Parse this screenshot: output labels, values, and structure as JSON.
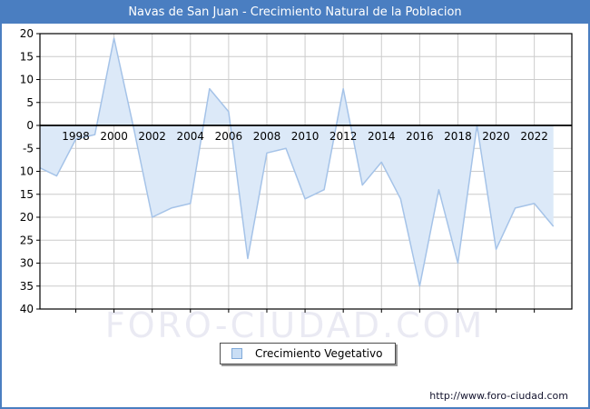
{
  "title": "Navas de San Juan - Crecimiento Natural de la Poblacion",
  "legend": {
    "label": "Crecimiento Vegetativo"
  },
  "watermark": "FORO-CIUDAD.COM",
  "footer": {
    "url": "http://www.foro-ciudad.com"
  },
  "colors": {
    "header_blue": "#4a7ec1",
    "area_fill": "#dce9f8",
    "line": "#a5c3e8",
    "grid": "#cccccc",
    "axis": "#000000",
    "plot_border": "#000000",
    "label_text": "#000000",
    "watermark": "#eaeaf3",
    "swatch_fill": "#c9def5",
    "swatch_border": "#80aad9"
  },
  "chart_data": {
    "type": "area",
    "title": "Navas de San Juan - Crecimiento Natural de la Poblacion",
    "xlabel": "",
    "ylabel": "",
    "x": [
      1996,
      1997,
      1998,
      1999,
      2000,
      2001,
      2002,
      2003,
      2004,
      2005,
      2006,
      2007,
      2008,
      2009,
      2010,
      2011,
      2012,
      2013,
      2014,
      2015,
      2016,
      2017,
      2018,
      2019,
      2020,
      2021,
      2022,
      2023
    ],
    "series": [
      {
        "name": "Crecimiento Vegetativo",
        "values": [
          -9,
          -11,
          -3,
          -2,
          19,
          0,
          -20,
          -18,
          -17,
          8,
          3,
          -29,
          -6,
          -5,
          -16,
          -14,
          8,
          -13,
          -8,
          -16,
          -35,
          -14,
          -30,
          0,
          -27,
          -18,
          -17,
          -22
        ]
      }
    ],
    "ylim": [
      -40,
      20
    ],
    "ytick_step": 5,
    "ytick_labels": [
      "20",
      "15",
      "10",
      "5",
      "0",
      "-5",
      "-10",
      "-15",
      "-20",
      "-25",
      "-30",
      "-35",
      "-40"
    ],
    "xtick_labels": [
      "1998",
      "2000",
      "2002",
      "2004",
      "2006",
      "2008",
      "2010",
      "2012",
      "2014",
      "2016",
      "2018",
      "2020",
      "2022"
    ],
    "grid": true,
    "baseline": 0,
    "legend_position": "bottom-center"
  }
}
